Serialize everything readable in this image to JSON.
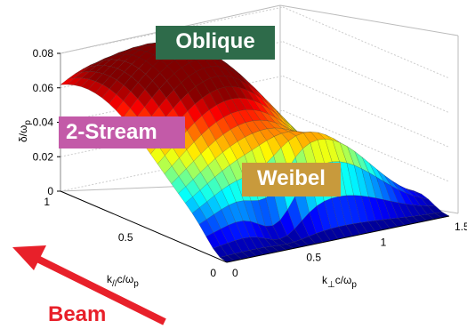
{
  "chart_data": {
    "type": "surface",
    "zlabel": "δ/ω",
    "zlabel_sub": "p",
    "xlabel_k_par": "k",
    "xlabel_k_par_sub": "//",
    "xlabel_k_par_tail": "c/ω",
    "xlabel_k_par_tail_sub": "p",
    "ylabel_k_perp": "k",
    "ylabel_k_perp_sub": "⊥",
    "ylabel_k_perp_tail": "c/ω",
    "ylabel_k_perp_tail_sub": "p",
    "z_ticks": [
      "0",
      "0.02",
      "0.04",
      "0.06",
      "0.08"
    ],
    "k_par_ticks": [
      "0",
      "0.5",
      "1"
    ],
    "k_perp_ticks": [
      "0",
      "0.5",
      "1",
      "1.5"
    ],
    "zlim": [
      0,
      0.08
    ],
    "k_par_lim": [
      0,
      1
    ],
    "k_perp_lim": [
      0,
      1.5
    ],
    "grid": true,
    "colormap": "jet"
  },
  "annotations": {
    "oblique": "Oblique",
    "two_stream": "2-Stream",
    "weibel": "Weibel",
    "beam": "Beam"
  },
  "colors": {
    "oblique_bg": "#2e6b4a",
    "two_stream_bg": "#c35aa8",
    "weibel_bg": "#c89a3c",
    "beam_arrow": "#e8202a"
  }
}
